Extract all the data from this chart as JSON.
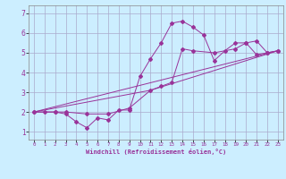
{
  "xlabel": "Windchill (Refroidissement éolien,°C)",
  "bg_color": "#cceeff",
  "grid_color": "#aaaacc",
  "line_color": "#993399",
  "xlim": [
    -0.5,
    23.5
  ],
  "ylim": [
    0.6,
    7.4
  ],
  "yticks": [
    1,
    2,
    3,
    4,
    5,
    6,
    7
  ],
  "xticks": [
    0,
    1,
    2,
    3,
    4,
    5,
    6,
    7,
    8,
    9,
    10,
    11,
    12,
    13,
    14,
    15,
    16,
    17,
    18,
    19,
    20,
    21,
    22,
    23
  ],
  "xtick_labels": [
    "0",
    "1",
    "2",
    "3",
    "4",
    "5",
    "6",
    "7",
    "8",
    "9",
    "10",
    "11",
    "12",
    "13",
    "14",
    "15",
    "16",
    "17",
    "18",
    "19",
    "20",
    "21",
    "22",
    "23"
  ],
  "series1_x": [
    0,
    1,
    2,
    3,
    4,
    5,
    6,
    7,
    8,
    9,
    10,
    11,
    12,
    13,
    14,
    15,
    16,
    17,
    18,
    19,
    20,
    21,
    22,
    23
  ],
  "series1_y": [
    2.0,
    2.0,
    2.0,
    1.9,
    1.5,
    1.2,
    1.7,
    1.6,
    2.1,
    2.1,
    3.8,
    4.7,
    5.5,
    6.5,
    6.6,
    6.3,
    5.9,
    4.6,
    5.1,
    5.5,
    5.5,
    4.9,
    5.0,
    5.1
  ],
  "series2_x": [
    0,
    2,
    3,
    5,
    7,
    9,
    11,
    12,
    13,
    14,
    15,
    17,
    19,
    20,
    21,
    22,
    23
  ],
  "series2_y": [
    2.0,
    2.0,
    2.0,
    1.9,
    1.9,
    2.2,
    3.1,
    3.3,
    3.5,
    5.2,
    5.1,
    5.0,
    5.2,
    5.5,
    5.6,
    5.0,
    5.1
  ],
  "series3_x": [
    0,
    23
  ],
  "series3_y": [
    2.0,
    5.1
  ],
  "series4_x": [
    0,
    11,
    23
  ],
  "series4_y": [
    2.0,
    3.1,
    5.1
  ]
}
